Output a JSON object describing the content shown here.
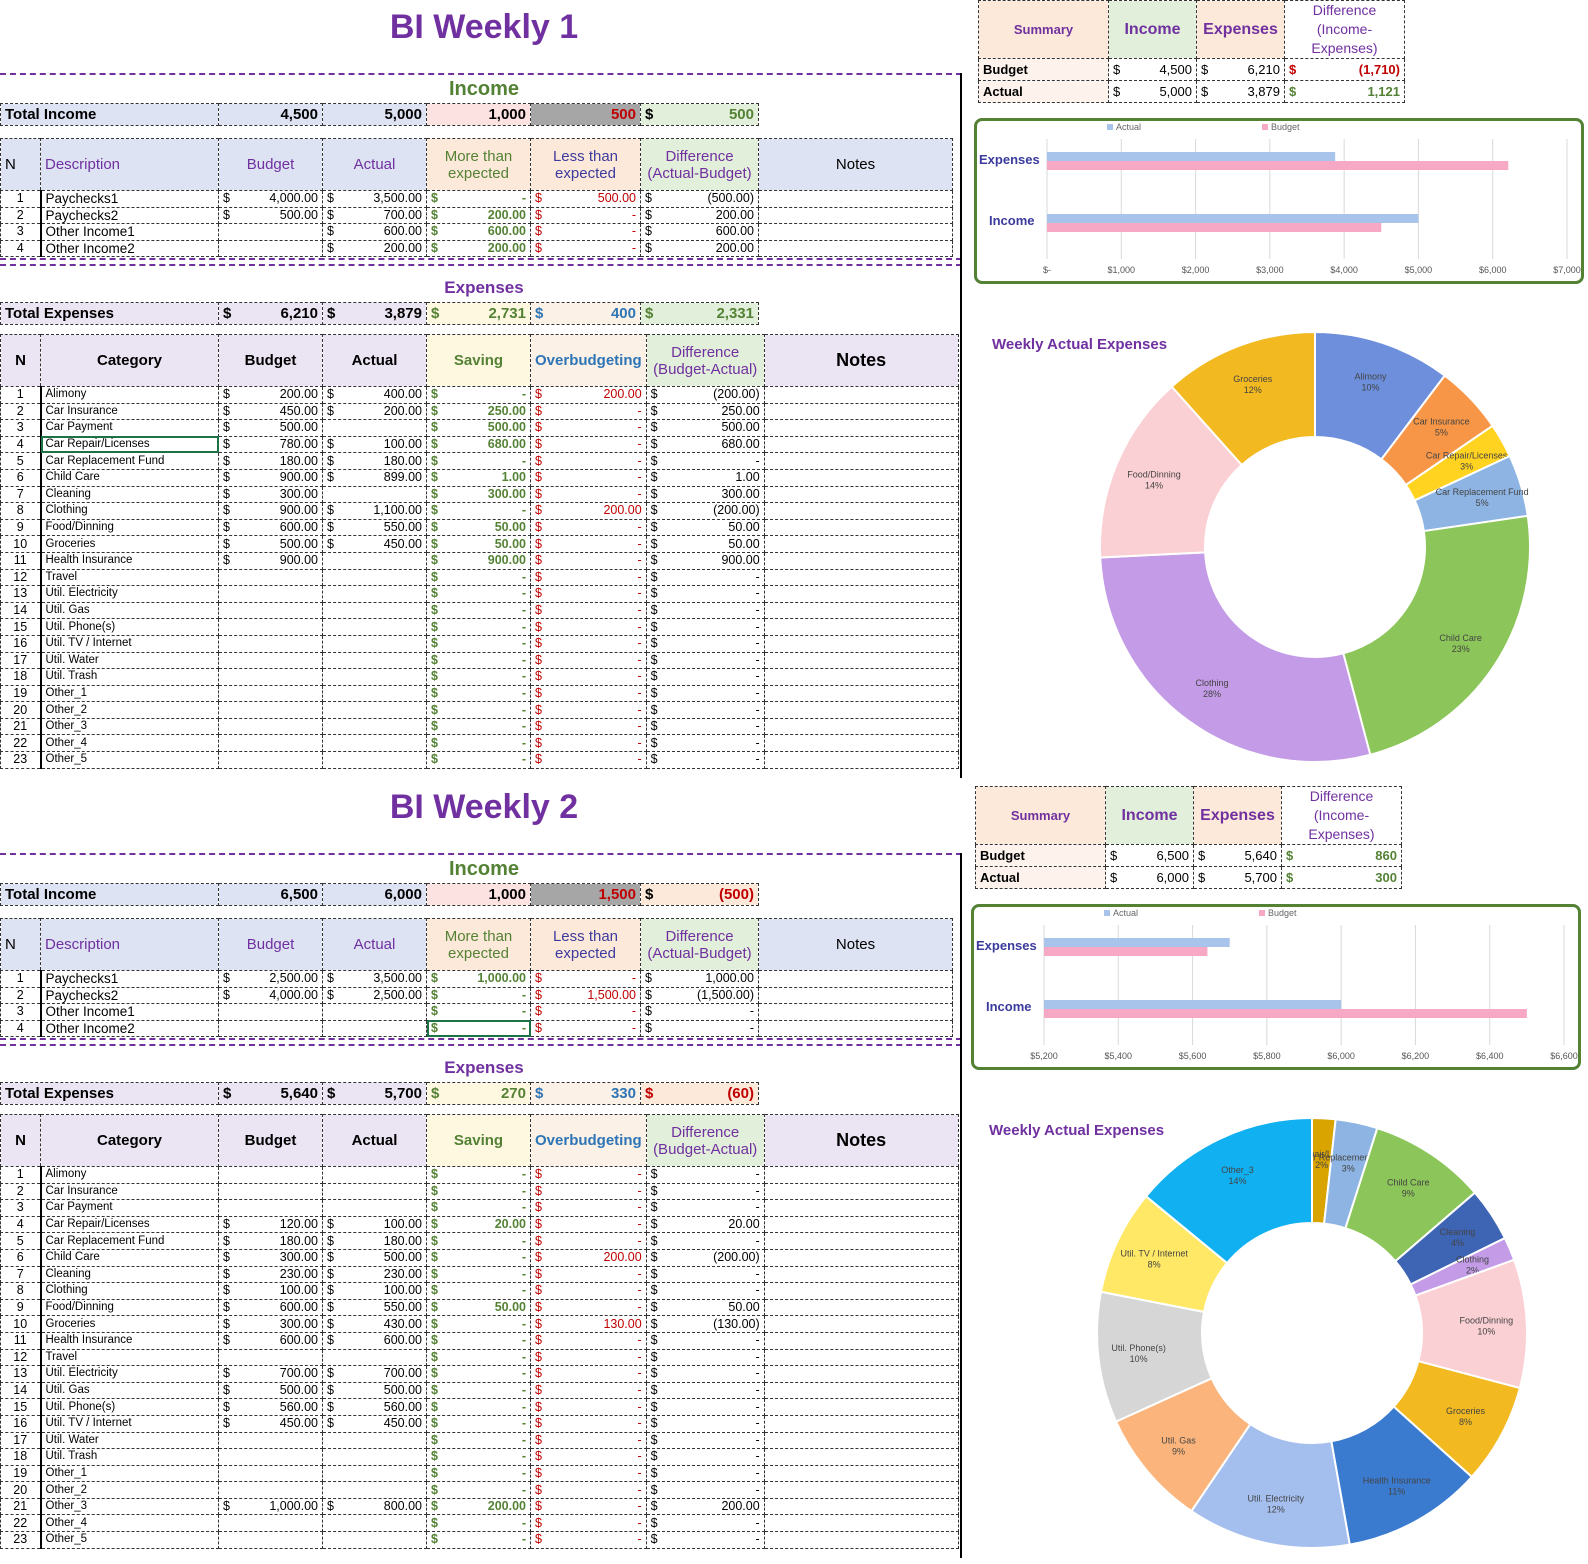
{
  "headers": {
    "income_section": "Income",
    "expenses_section": "Expenses",
    "total_income": "Total Income",
    "total_expenses": "Total Expenses",
    "n": "N",
    "description": "Description",
    "category": "Category",
    "budget": "Budget",
    "actual": "Actual",
    "more_than": "More than expected",
    "less_than": "Less than expected",
    "diff_ab": "Difference (Actual-Budget)",
    "diff_ba": "Difference (Budget-Actual)",
    "saving": "Saving",
    "overbudgeting": "Overbudgeting",
    "notes": "Notes",
    "summary": "Summary",
    "income": "Income",
    "expenses": "Expenses",
    "diff_ie": "Difference (Income-Expenses)",
    "budget_row": "Budget",
    "actual_row": "Actual",
    "dollar": "$",
    "legend_actual": "Actual",
    "legend_budget": "Budget",
    "donut_title": "Weekly Actual Expenses",
    "bar_expenses": "Expenses",
    "bar_income": "Income"
  },
  "sheets": [
    {
      "title": "BI Weekly 1",
      "income_totals": {
        "budget": "4,500",
        "actual": "5,000",
        "more": "1,000",
        "less": "500",
        "diff": "500"
      },
      "income_rows": [
        {
          "n": "1",
          "desc": "Paychecks1",
          "budget": "4,000.00",
          "actual": "3,500.00",
          "more": "-",
          "less": "500.00",
          "diff": "(500.00)"
        },
        {
          "n": "2",
          "desc": "Paychecks2",
          "budget": "500.00",
          "actual": "700.00",
          "more": "200.00",
          "less": "-",
          "diff": "200.00"
        },
        {
          "n": "3",
          "desc": "Other Income1",
          "budget": "",
          "actual": "600.00",
          "more": "600.00",
          "less": "-",
          "diff": "600.00"
        },
        {
          "n": "4",
          "desc": "Other Income2",
          "budget": "",
          "actual": "200.00",
          "more": "200.00",
          "less": "-",
          "diff": "200.00"
        }
      ],
      "expense_totals": {
        "budget": "6,210",
        "actual": "3,879",
        "saving": "2,731",
        "over": "400",
        "diff": "2,331"
      },
      "expense_rows": [
        {
          "n": "1",
          "cat": "Alimony",
          "budget": "200.00",
          "actual": "400.00",
          "saving": "-",
          "over": "200.00",
          "diff": "(200.00)"
        },
        {
          "n": "2",
          "cat": "Car Insurance",
          "budget": "450.00",
          "actual": "200.00",
          "saving": "250.00",
          "over": "-",
          "diff": "250.00"
        },
        {
          "n": "3",
          "cat": "Car Payment",
          "budget": "500.00",
          "actual": "",
          "saving": "500.00",
          "over": "-",
          "diff": "500.00"
        },
        {
          "n": "4",
          "cat": "Car Repair/Licenses",
          "budget": "780.00",
          "actual": "100.00",
          "saving": "680.00",
          "over": "-",
          "diff": "680.00"
        },
        {
          "n": "5",
          "cat": "Car Replacement Fund",
          "budget": "180.00",
          "actual": "180.00",
          "saving": "-",
          "over": "-",
          "diff": "-"
        },
        {
          "n": "6",
          "cat": "Child Care",
          "budget": "900.00",
          "actual": "899.00",
          "saving": "1.00",
          "over": "-",
          "diff": "1.00"
        },
        {
          "n": "7",
          "cat": "Cleaning",
          "budget": "300.00",
          "actual": "",
          "saving": "300.00",
          "over": "-",
          "diff": "300.00"
        },
        {
          "n": "8",
          "cat": "Clothing",
          "budget": "900.00",
          "actual": "1,100.00",
          "saving": "-",
          "over": "200.00",
          "diff": "(200.00)"
        },
        {
          "n": "9",
          "cat": "Food/Dinning",
          "budget": "600.00",
          "actual": "550.00",
          "saving": "50.00",
          "over": "-",
          "diff": "50.00"
        },
        {
          "n": "10",
          "cat": "Groceries",
          "budget": "500.00",
          "actual": "450.00",
          "saving": "50.00",
          "over": "-",
          "diff": "50.00"
        },
        {
          "n": "11",
          "cat": "Health Insurance",
          "budget": "900.00",
          "actual": "",
          "saving": "900.00",
          "over": "-",
          "diff": "900.00"
        },
        {
          "n": "12",
          "cat": "Travel",
          "budget": "",
          "actual": "",
          "saving": "-",
          "over": "-",
          "diff": "-"
        },
        {
          "n": "13",
          "cat": "Util. Electricity",
          "budget": "",
          "actual": "",
          "saving": "-",
          "over": "-",
          "diff": "-"
        },
        {
          "n": "14",
          "cat": "Util. Gas",
          "budget": "",
          "actual": "",
          "saving": "-",
          "over": "-",
          "diff": "-"
        },
        {
          "n": "15",
          "cat": "Util. Phone(s)",
          "budget": "",
          "actual": "",
          "saving": "-",
          "over": "-",
          "diff": "-"
        },
        {
          "n": "16",
          "cat": "Util. TV / Internet",
          "budget": "",
          "actual": "",
          "saving": "-",
          "over": "-",
          "diff": "-"
        },
        {
          "n": "17",
          "cat": "Util. Water",
          "budget": "",
          "actual": "",
          "saving": "-",
          "over": "-",
          "diff": "-"
        },
        {
          "n": "18",
          "cat": "Util. Trash",
          "budget": "",
          "actual": "",
          "saving": "-",
          "over": "-",
          "diff": "-"
        },
        {
          "n": "19",
          "cat": "Other_1",
          "budget": "",
          "actual": "",
          "saving": "-",
          "over": "-",
          "diff": "-"
        },
        {
          "n": "20",
          "cat": "Other_2",
          "budget": "",
          "actual": "",
          "saving": "-",
          "over": "-",
          "diff": "-"
        },
        {
          "n": "21",
          "cat": "Other_3",
          "budget": "",
          "actual": "",
          "saving": "-",
          "over": "-",
          "diff": "-"
        },
        {
          "n": "22",
          "cat": "Other_4",
          "budget": "",
          "actual": "",
          "saving": "-",
          "over": "-",
          "diff": "-"
        },
        {
          "n": "23",
          "cat": "Other_5",
          "budget": "",
          "actual": "",
          "saving": "-",
          "over": "-",
          "diff": "-"
        }
      ],
      "summary": {
        "budget_income": "4,500",
        "budget_expenses": "6,210",
        "budget_diff": "(1,710)",
        "actual_income": "5,000",
        "actual_expenses": "3,879",
        "actual_diff": "1,121"
      },
      "bar": {
        "xticks": [
          "$-",
          "$1,000",
          "$2,000",
          "$3,000",
          "$4,000",
          "$5,000",
          "$6,000",
          "$7,000"
        ],
        "xmin": 0,
        "xmax": 7000,
        "expenses_actual": 3879,
        "expenses_budget": 6210,
        "income_actual": 5000,
        "income_budget": 4500
      },
      "donut": [
        {
          "label": "Alimony",
          "pct": "10%",
          "value": 400,
          "color": "#6d8fdc"
        },
        {
          "label": "Car Insurance",
          "pct": "5%",
          "value": 200,
          "color": "#f79646"
        },
        {
          "label": "Car Repair/Licenses",
          "pct": "3%",
          "value": 100,
          "color": "#ffd320"
        },
        {
          "label": "Car Replacement Fund",
          "pct": "5%",
          "value": 180,
          "color": "#8db4e2"
        },
        {
          "label": "Child Care",
          "pct": "23%",
          "value": 899,
          "color": "#8cc65a"
        },
        {
          "label": "Clothing",
          "pct": "28%",
          "value": 1100,
          "color": "#c39be6"
        },
        {
          "label": "Food/Dinning",
          "pct": "14%",
          "value": 550,
          "color": "#fbd0d4"
        },
        {
          "label": "Groceries",
          "pct": "12%",
          "value": 450,
          "color": "#f2b920"
        }
      ]
    },
    {
      "title": "BI Weekly 2",
      "income_totals": {
        "budget": "6,500",
        "actual": "6,000",
        "more": "1,000",
        "less": "1,500",
        "diff": "(500)"
      },
      "income_rows": [
        {
          "n": "1",
          "desc": "Paychecks1",
          "budget": "2,500.00",
          "actual": "3,500.00",
          "more": "1,000.00",
          "less": "-",
          "diff": "1,000.00"
        },
        {
          "n": "2",
          "desc": "Paychecks2",
          "budget": "4,000.00",
          "actual": "2,500.00",
          "more": "-",
          "less": "1,500.00",
          "diff": "(1,500.00)"
        },
        {
          "n": "3",
          "desc": "Other Income1",
          "budget": "",
          "actual": "",
          "more": "-",
          "less": "-",
          "diff": "-"
        },
        {
          "n": "4",
          "desc": "Other Income2",
          "budget": "",
          "actual": "",
          "more": "-",
          "less": "-",
          "diff": "-"
        }
      ],
      "expense_totals": {
        "budget": "5,640",
        "actual": "5,700",
        "saving": "270",
        "over": "330",
        "diff": "(60)"
      },
      "expense_rows": [
        {
          "n": "1",
          "cat": "Alimony",
          "budget": "",
          "actual": "",
          "saving": "-",
          "over": "-",
          "diff": "-"
        },
        {
          "n": "2",
          "cat": "Car Insurance",
          "budget": "",
          "actual": "",
          "saving": "-",
          "over": "-",
          "diff": "-"
        },
        {
          "n": "3",
          "cat": "Car Payment",
          "budget": "",
          "actual": "",
          "saving": "-",
          "over": "-",
          "diff": "-"
        },
        {
          "n": "4",
          "cat": "Car Repair/Licenses",
          "budget": "120.00",
          "actual": "100.00",
          "saving": "20.00",
          "over": "-",
          "diff": "20.00"
        },
        {
          "n": "5",
          "cat": "Car Replacement Fund",
          "budget": "180.00",
          "actual": "180.00",
          "saving": "-",
          "over": "-",
          "diff": "-"
        },
        {
          "n": "6",
          "cat": "Child Care",
          "budget": "300.00",
          "actual": "500.00",
          "saving": "-",
          "over": "200.00",
          "diff": "(200.00)"
        },
        {
          "n": "7",
          "cat": "Cleaning",
          "budget": "230.00",
          "actual": "230.00",
          "saving": "-",
          "over": "-",
          "diff": "-"
        },
        {
          "n": "8",
          "cat": "Clothing",
          "budget": "100.00",
          "actual": "100.00",
          "saving": "-",
          "over": "-",
          "diff": "-"
        },
        {
          "n": "9",
          "cat": "Food/Dinning",
          "budget": "600.00",
          "actual": "550.00",
          "saving": "50.00",
          "over": "-",
          "diff": "50.00"
        },
        {
          "n": "10",
          "cat": "Groceries",
          "budget": "300.00",
          "actual": "430.00",
          "saving": "-",
          "over": "130.00",
          "diff": "(130.00)"
        },
        {
          "n": "11",
          "cat": "Health Insurance",
          "budget": "600.00",
          "actual": "600.00",
          "saving": "-",
          "over": "-",
          "diff": "-"
        },
        {
          "n": "12",
          "cat": "Travel",
          "budget": "",
          "actual": "",
          "saving": "-",
          "over": "-",
          "diff": "-"
        },
        {
          "n": "13",
          "cat": "Util. Electricity",
          "budget": "700.00",
          "actual": "700.00",
          "saving": "-",
          "over": "-",
          "diff": "-"
        },
        {
          "n": "14",
          "cat": "Util. Gas",
          "budget": "500.00",
          "actual": "500.00",
          "saving": "-",
          "over": "-",
          "diff": "-"
        },
        {
          "n": "15",
          "cat": "Util. Phone(s)",
          "budget": "560.00",
          "actual": "560.00",
          "saving": "-",
          "over": "-",
          "diff": "-"
        },
        {
          "n": "16",
          "cat": "Util. TV / Internet",
          "budget": "450.00",
          "actual": "450.00",
          "saving": "-",
          "over": "-",
          "diff": "-"
        },
        {
          "n": "17",
          "cat": "Util. Water",
          "budget": "",
          "actual": "",
          "saving": "-",
          "over": "-",
          "diff": "-"
        },
        {
          "n": "18",
          "cat": "Util. Trash",
          "budget": "",
          "actual": "",
          "saving": "-",
          "over": "-",
          "diff": "-"
        },
        {
          "n": "19",
          "cat": "Other_1",
          "budget": "",
          "actual": "",
          "saving": "-",
          "over": "-",
          "diff": "-"
        },
        {
          "n": "20",
          "cat": "Other_2",
          "budget": "",
          "actual": "",
          "saving": "-",
          "over": "-",
          "diff": "-"
        },
        {
          "n": "21",
          "cat": "Other_3",
          "budget": "1,000.00",
          "actual": "800.00",
          "saving": "200.00",
          "over": "-",
          "diff": "200.00"
        },
        {
          "n": "22",
          "cat": "Other_4",
          "budget": "",
          "actual": "",
          "saving": "-",
          "over": "-",
          "diff": "-"
        },
        {
          "n": "23",
          "cat": "Other_5",
          "budget": "",
          "actual": "",
          "saving": "-",
          "over": "-",
          "diff": "-"
        }
      ],
      "summary": {
        "budget_income": "6,500",
        "budget_expenses": "5,640",
        "budget_diff": "860",
        "actual_income": "6,000",
        "actual_expenses": "5,700",
        "actual_diff": "300"
      },
      "bar": {
        "xticks": [
          "$5,200",
          "$5,400",
          "$5,600",
          "$5,800",
          "$6,000",
          "$6,200",
          "$6,400",
          "$6,600"
        ],
        "xmin": 5200,
        "xmax": 6600,
        "expenses_actual": 5700,
        "expenses_budget": 5640,
        "income_actual": 6000,
        "income_budget": 6500
      },
      "donut": [
        {
          "label": "Car Repair/Licenses",
          "pct": "2%",
          "value": 100,
          "color": "#d9a400"
        },
        {
          "label": "Car Replacement Fund",
          "pct": "3%",
          "value": 180,
          "color": "#8db4e2"
        },
        {
          "label": "Child Care",
          "pct": "9%",
          "value": 500,
          "color": "#8cc65a"
        },
        {
          "label": "Cleaning",
          "pct": "4%",
          "value": 230,
          "color": "#3e64b4"
        },
        {
          "label": "Clothing",
          "pct": "2%",
          "value": 100,
          "color": "#c39be6"
        },
        {
          "label": "Food/Dinning",
          "pct": "10%",
          "value": 550,
          "color": "#fbd0d4"
        },
        {
          "label": "Groceries",
          "pct": "8%",
          "value": 430,
          "color": "#f2b920"
        },
        {
          "label": "Health Insurance",
          "pct": "11%",
          "value": 600,
          "color": "#3a7bd0"
        },
        {
          "label": "Util. Electricity",
          "pct": "12%",
          "value": 700,
          "color": "#a4bfee"
        },
        {
          "label": "Util. Gas",
          "pct": "9%",
          "value": 500,
          "color": "#fbb57c"
        },
        {
          "label": "Util. Phone(s)",
          "pct": "10%",
          "value": 560,
          "color": "#d6d6d6"
        },
        {
          "label": "Util. TV / Internet",
          "pct": "8%",
          "value": 450,
          "color": "#ffe866"
        },
        {
          "label": "Other_3",
          "pct": "14%",
          "value": 800,
          "color": "#11b0f0"
        }
      ]
    }
  ]
}
